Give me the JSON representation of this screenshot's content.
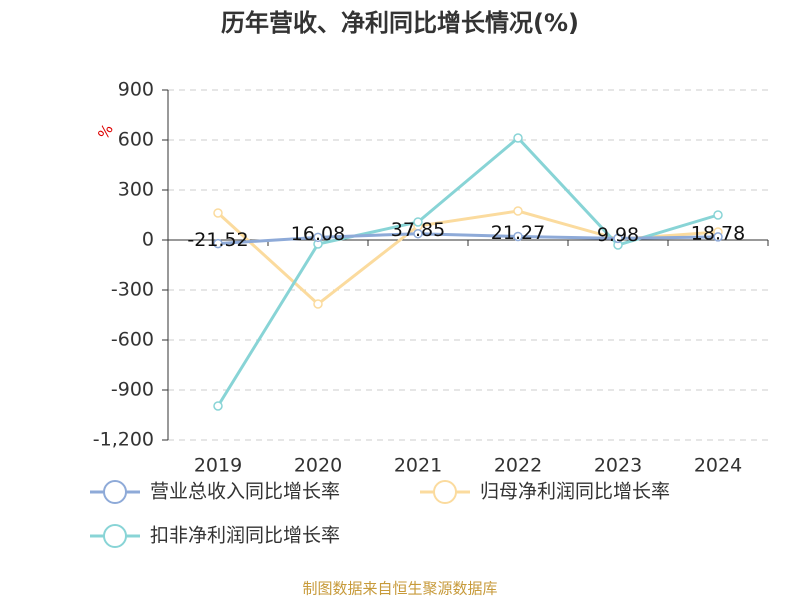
{
  "chart_data": {
    "type": "line",
    "title": "历年营收、净利同比增长情况(%)",
    "unit": "%",
    "categories": [
      "2019",
      "2020",
      "2021",
      "2022",
      "2023",
      "2024"
    ],
    "series": [
      {
        "name": "营业总收入同比增长率",
        "color": "#8eaad8",
        "values": [
          -21.52,
          16.08,
          37.85,
          21.27,
          9.98,
          18.78
        ],
        "show_labels": true
      },
      {
        "name": "归母净利润同比增长率",
        "color": "#fbdb9e",
        "values": [
          162,
          -384,
          84,
          174,
          5,
          48
        ]
      },
      {
        "name": "扣非净利润同比增长率",
        "color": "#88d4d6",
        "values": [
          -996,
          -24,
          108,
          612,
          -30,
          150
        ]
      }
    ],
    "ylim": [
      -1200,
      900
    ],
    "yticks": [
      {
        "value": -1200,
        "label": "-1,200"
      },
      -900,
      -600,
      -300,
      0,
      300,
      600,
      900
    ],
    "grid": true,
    "source": "制图数据来自恒生聚源数据库"
  }
}
